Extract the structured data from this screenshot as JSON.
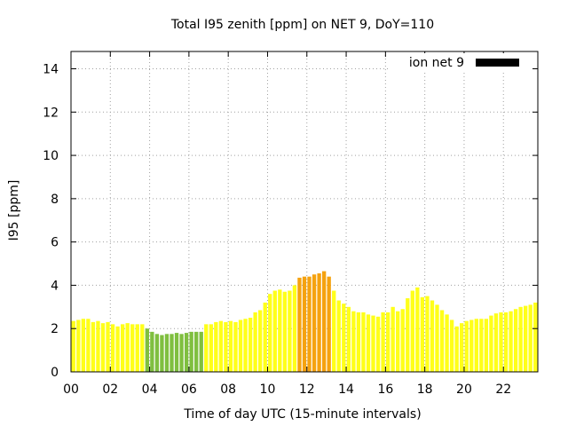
{
  "chart_data": {
    "type": "bar",
    "title": "Total I95 zenith [ppm] on NET 9, DoY=110",
    "xlabel": "Time of day UTC (15-minute intervals)",
    "ylabel": "I95 [ppm]",
    "xlim": [
      0,
      23.75
    ],
    "ylim": [
      0,
      14.8
    ],
    "x_ticks": [
      0,
      2,
      4,
      6,
      8,
      10,
      12,
      14,
      16,
      18,
      20,
      22
    ],
    "x_tick_labels": [
      "00",
      "02",
      "04",
      "06",
      "08",
      "10",
      "12",
      "14",
      "16",
      "18",
      "20",
      "22"
    ],
    "y_ticks": [
      0,
      2,
      4,
      6,
      8,
      10,
      12,
      14
    ],
    "y_tick_labels": [
      "0",
      "2",
      "4",
      "6",
      "8",
      "10",
      "12",
      "14"
    ],
    "grid": true,
    "legend": {
      "position": "top-right",
      "label": "ion net 9",
      "color": "#000000"
    },
    "colors": {
      "yellow": "#ffff19",
      "green": "#7fbf3f",
      "orange": "#f5a20f"
    },
    "interval_hours": 0.25,
    "values": [
      2.35,
      2.4,
      2.45,
      2.45,
      2.3,
      2.35,
      2.25,
      2.3,
      2.2,
      2.1,
      2.2,
      2.25,
      2.2,
      2.2,
      2.2,
      2.0,
      1.85,
      1.75,
      1.7,
      1.75,
      1.75,
      1.8,
      1.75,
      1.8,
      1.85,
      1.85,
      1.85,
      2.2,
      2.2,
      2.3,
      2.35,
      2.3,
      2.35,
      2.3,
      2.4,
      2.45,
      2.5,
      2.75,
      2.85,
      3.2,
      3.6,
      3.75,
      3.8,
      3.7,
      3.75,
      4.0,
      4.35,
      4.4,
      4.4,
      4.5,
      4.55,
      4.65,
      4.4,
      3.75,
      3.3,
      3.15,
      3.0,
      2.8,
      2.75,
      2.75,
      2.65,
      2.6,
      2.55,
      2.75,
      2.75,
      3.0,
      2.8,
      2.9,
      3.4,
      3.75,
      3.9,
      3.45,
      3.5,
      3.3,
      3.1,
      2.85,
      2.65,
      2.4,
      2.1,
      2.25,
      2.35,
      2.4,
      2.45,
      2.45,
      2.45,
      2.6,
      2.7,
      2.75,
      2.75,
      2.8,
      2.9,
      3.0,
      3.05,
      3.1,
      3.2,
      3.4
    ],
    "bar_colors": [
      "yellow",
      "yellow",
      "yellow",
      "yellow",
      "yellow",
      "yellow",
      "yellow",
      "yellow",
      "yellow",
      "yellow",
      "yellow",
      "yellow",
      "yellow",
      "yellow",
      "yellow",
      "green",
      "green",
      "green",
      "green",
      "green",
      "green",
      "green",
      "green",
      "green",
      "green",
      "green",
      "green",
      "yellow",
      "yellow",
      "yellow",
      "yellow",
      "yellow",
      "yellow",
      "yellow",
      "yellow",
      "yellow",
      "yellow",
      "yellow",
      "yellow",
      "yellow",
      "yellow",
      "yellow",
      "yellow",
      "yellow",
      "yellow",
      "yellow",
      "orange",
      "orange",
      "orange",
      "orange",
      "orange",
      "orange",
      "orange",
      "yellow",
      "yellow",
      "yellow",
      "yellow",
      "yellow",
      "yellow",
      "yellow",
      "yellow",
      "yellow",
      "yellow",
      "yellow",
      "yellow",
      "yellow",
      "yellow",
      "yellow",
      "yellow",
      "yellow",
      "yellow",
      "yellow",
      "yellow",
      "yellow",
      "yellow",
      "yellow",
      "yellow",
      "yellow",
      "yellow",
      "yellow",
      "yellow",
      "yellow",
      "yellow",
      "yellow",
      "yellow",
      "yellow",
      "yellow",
      "yellow",
      "yellow",
      "yellow",
      "yellow",
      "yellow",
      "yellow",
      "yellow",
      "yellow",
      "yellow"
    ]
  }
}
